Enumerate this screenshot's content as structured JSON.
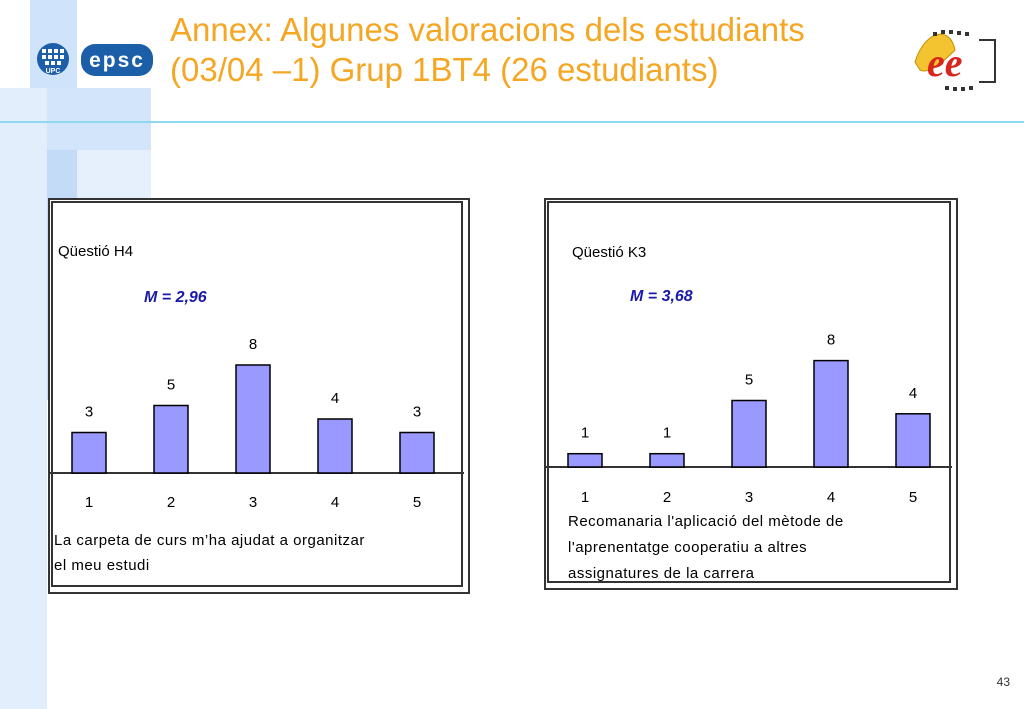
{
  "slide": {
    "title_line1": "Annex: Algunes valoracions dels estudiants",
    "title_line2": "(03/04 –1) Grup 1BT4 (26 estudiants)",
    "page_number": "43",
    "logos": {
      "upc": "UPC",
      "epsc": "epsc",
      "ee": "ee"
    },
    "colors": {
      "title": "#f5a623",
      "bar_fill": "#9999ff",
      "mean_text": "#1a1aa8",
      "accent_line": "#8fd8f0"
    }
  },
  "chart_data": [
    {
      "type": "bar",
      "title": "Qüestió H4",
      "mean_label": "M = 2,96",
      "categories": [
        "1",
        "2",
        "3",
        "4",
        "5"
      ],
      "values": [
        3,
        5,
        8,
        4,
        3
      ],
      "xlabel_lines": [
        "La carpeta de curs m’ha ajudat a organitzar",
        "el meu estudi"
      ],
      "ylim": [
        0,
        10
      ],
      "grid": false,
      "bar_color": "#9999ff"
    },
    {
      "type": "bar",
      "title": "Qüestió K3",
      "mean_label": "M = 3,68",
      "categories": [
        "1",
        "2",
        "3",
        "4",
        "5"
      ],
      "values": [
        1,
        1,
        5,
        8,
        4
      ],
      "xlabel_lines": [
        "Recomanaria l'aplicació del mètode de",
        "l'aprenentatge cooperatiu a altres",
        "assignatures de la carrera"
      ],
      "ylim": [
        0,
        10
      ],
      "grid": false,
      "bar_color": "#9999ff"
    }
  ]
}
